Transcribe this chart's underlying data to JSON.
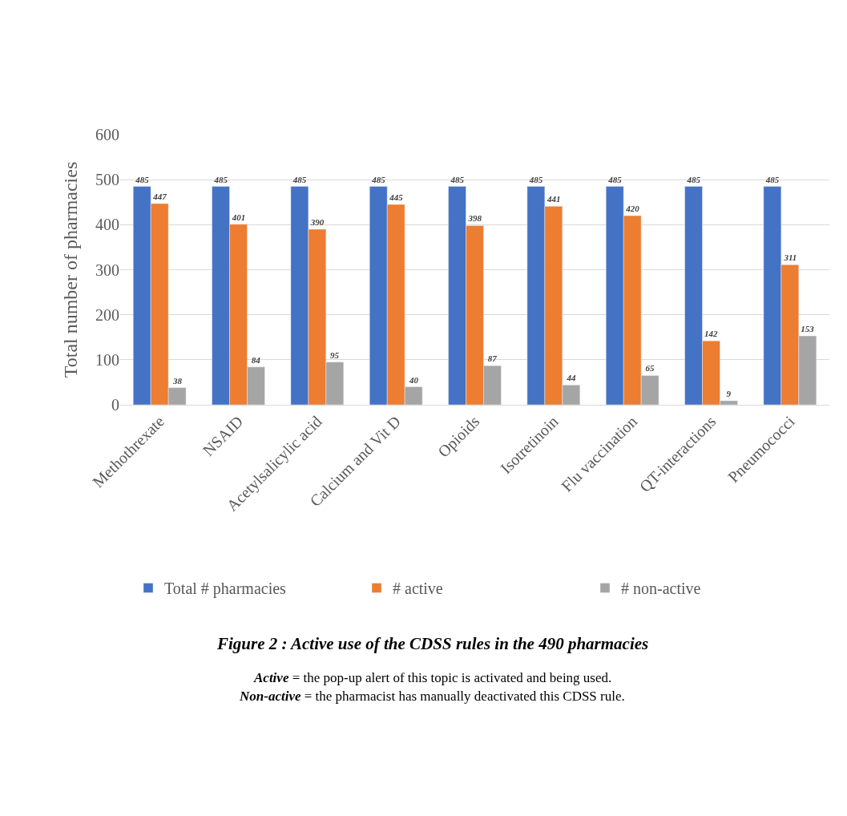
{
  "chart_data": {
    "type": "bar",
    "title": "Figure 2 : Active use of the CDSS rules in the 490 pharmacies",
    "ylabel": "Total number of pharmacies",
    "categories": [
      "Methothrexate",
      "NSAID",
      "Acetylsalicylic acid",
      "Calcium and Vit D",
      "Opioids",
      "Isotretinoin",
      "Flu vaccination",
      "QT-interactions",
      "Pneumococci"
    ],
    "series": [
      {
        "name": "Total # pharmacies",
        "color": "#4472c4",
        "values": [
          485,
          485,
          485,
          485,
          485,
          485,
          485,
          485,
          485
        ]
      },
      {
        "name": "# active",
        "color": "#ed7d31",
        "values": [
          447,
          401,
          390,
          445,
          398,
          441,
          420,
          142,
          311
        ]
      },
      {
        "name": "# non-active",
        "color": "#a5a5a5",
        "values": [
          38,
          84,
          95,
          40,
          87,
          44,
          65,
          9,
          153
        ]
      }
    ],
    "ylim": [
      0,
      600
    ],
    "yticks": [
      0,
      100,
      200,
      300,
      400,
      500,
      600
    ],
    "grid": "y",
    "legend": "bottom",
    "data_labels": true,
    "annotations": [
      "Active = the pop-up alert of this topic is activated and being used.",
      "Non-active = the pharmacist has manually deactivated this CDSS rule."
    ]
  }
}
